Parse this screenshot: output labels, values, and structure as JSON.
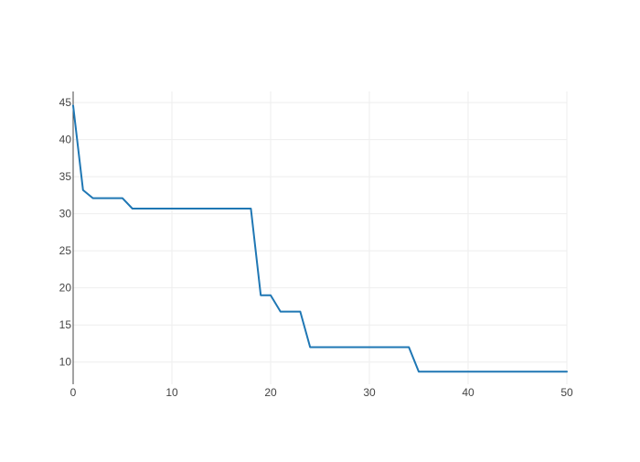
{
  "colors": {
    "line": "#1f77b4",
    "grid": "#eeeeee",
    "axis": "#444444",
    "background": "#ffffff"
  },
  "chart_data": {
    "type": "line",
    "title": "",
    "xlabel": "",
    "ylabel": "",
    "xlim": [
      0,
      50
    ],
    "ylim": [
      7,
      46.5
    ],
    "grid": true,
    "xticks": [
      0,
      10,
      20,
      30,
      40,
      50
    ],
    "yticks": [
      10,
      15,
      20,
      25,
      30,
      35,
      40,
      45
    ],
    "series": [
      {
        "x": [
          0,
          1,
          2,
          3,
          4,
          5,
          6,
          7,
          8,
          9,
          10,
          11,
          12,
          13,
          14,
          15,
          16,
          17,
          18,
          19,
          20,
          21,
          22,
          23,
          24,
          25,
          26,
          27,
          28,
          29,
          30,
          31,
          32,
          33,
          34,
          35,
          36,
          37,
          38,
          39,
          40,
          41,
          42,
          43,
          44,
          45,
          46,
          47,
          48,
          49,
          50
        ],
        "values": [
          44.6,
          33.2,
          32.1,
          32.1,
          32.1,
          32.1,
          30.7,
          30.7,
          30.7,
          30.7,
          30.7,
          30.7,
          30.7,
          30.7,
          30.7,
          30.7,
          30.7,
          30.7,
          30.7,
          19.0,
          19.0,
          16.8,
          16.8,
          16.8,
          12.0,
          12.0,
          12.0,
          12.0,
          12.0,
          12.0,
          12.0,
          12.0,
          12.0,
          12.0,
          12.0,
          8.7,
          8.7,
          8.7,
          8.7,
          8.7,
          8.7,
          8.7,
          8.7,
          8.7,
          8.7,
          8.7,
          8.7,
          8.7,
          8.7,
          8.7,
          8.7
        ]
      }
    ]
  }
}
